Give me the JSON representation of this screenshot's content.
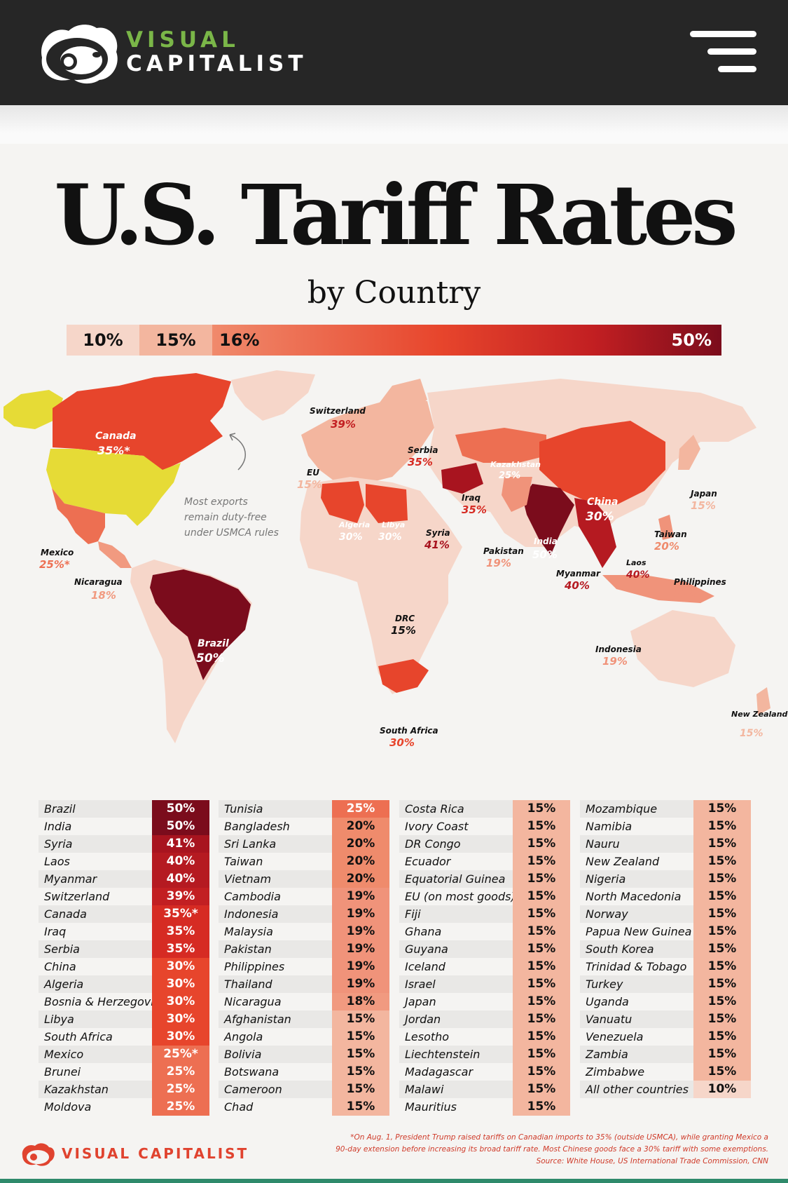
{
  "header": {
    "brand_line1": "VISUAL",
    "brand_line2": "CAPITALIST",
    "menu_icon": "hamburger-menu-icon",
    "colors": {
      "bar": "#262626",
      "brand_green": "#7ab648"
    }
  },
  "infographic": {
    "title_part1": "U.S.",
    "title_highlight": "Tariff",
    "title_part2": "Rates",
    "subtitle": "by Country",
    "legend": {
      "s10": "10%",
      "s15": "15%",
      "s16": "16%",
      "s50": "50%"
    },
    "colors": {
      "r10": "#f6d6c9",
      "r15": "#f3b69f",
      "r18": "#f08a6c",
      "r20": "#ef8b6c",
      "r25": "#ed6f52",
      "r30": "#e7452c",
      "r35": "#d62b23",
      "r39": "#c21f22",
      "r41": "#a8141f",
      "r50": "#7b0c1c",
      "us": "#e6db36"
    },
    "map": {
      "usmca_note": [
        "Most exports",
        "remain duty-free",
        "under USMCA rules"
      ],
      "labels": {
        "canada": {
          "name": "Canada",
          "rate": "35%*"
        },
        "mexico": {
          "name": "Mexico",
          "rate": "25%*"
        },
        "nicaragua": {
          "name": "Nicaragua",
          "rate": "18%"
        },
        "brazil": {
          "name": "Brazil",
          "rate": "50%"
        },
        "switzerland": {
          "name": "Switzerland",
          "rate": "39%"
        },
        "eu": {
          "name": "EU",
          "rate": "15%"
        },
        "serbia": {
          "name": "Serbia",
          "rate": "35%"
        },
        "kazakhstan": {
          "name": "Kazakhstan",
          "rate": "25%"
        },
        "iraq": {
          "name": "Iraq",
          "rate": "35%"
        },
        "algeria": {
          "name": "Algeria",
          "rate": "30%"
        },
        "libya": {
          "name": "Libya",
          "rate": "30%"
        },
        "syria": {
          "name": "Syria",
          "rate": "41%"
        },
        "china": {
          "name": "China",
          "rate": "30%"
        },
        "japan": {
          "name": "Japan",
          "rate": "15%"
        },
        "taiwan": {
          "name": "Taiwan",
          "rate": "20%"
        },
        "india": {
          "name": "India",
          "rate": "50%"
        },
        "pakistan": {
          "name": "Pakistan",
          "rate": "19%"
        },
        "myanmar": {
          "name": "Myanmar",
          "rate": "40%"
        },
        "laos": {
          "name": "Laos",
          "rate": "40%"
        },
        "philippines": {
          "name": "Philippines",
          "rate": "19%"
        },
        "drc": {
          "name": "DRC",
          "rate": "15%"
        },
        "indonesia": {
          "name": "Indonesia",
          "rate": "19%"
        },
        "south_africa": {
          "name": "South Africa",
          "rate": "30%"
        },
        "new_zealand": {
          "name": "New Zealand",
          "rate": "15%"
        }
      }
    },
    "table": [
      [
        {
          "country": "Brazil",
          "rate": "50%",
          "color": "#7b0c1c"
        },
        {
          "country": "India",
          "rate": "50%",
          "color": "#7b0c1c"
        },
        {
          "country": "Syria",
          "rate": "41%",
          "color": "#a8141f"
        },
        {
          "country": "Laos",
          "rate": "40%",
          "color": "#b51a21"
        },
        {
          "country": "Myanmar",
          "rate": "40%",
          "color": "#b51a21"
        },
        {
          "country": "Switzerland",
          "rate": "39%",
          "color": "#c21f22"
        },
        {
          "country": "Canada",
          "rate": "35%*",
          "color": "#d62b23"
        },
        {
          "country": "Iraq",
          "rate": "35%",
          "color": "#d62b23"
        },
        {
          "country": "Serbia",
          "rate": "35%",
          "color": "#d62b23"
        },
        {
          "country": "China",
          "rate": "30%",
          "color": "#e7452c"
        },
        {
          "country": "Algeria",
          "rate": "30%",
          "color": "#e7452c"
        },
        {
          "country": "Bosnia & Herzegovina",
          "rate": "30%",
          "color": "#e7452c"
        },
        {
          "country": "Libya",
          "rate": "30%",
          "color": "#e7452c"
        },
        {
          "country": "South Africa",
          "rate": "30%",
          "color": "#e7452c"
        },
        {
          "country": "Mexico",
          "rate": "25%*",
          "color": "#ed6f52"
        },
        {
          "country": "Brunei",
          "rate": "25%",
          "color": "#ed6f52"
        },
        {
          "country": "Kazakhstan",
          "rate": "25%",
          "color": "#ed6f52"
        },
        {
          "country": "Moldova",
          "rate": "25%",
          "color": "#ed6f52"
        }
      ],
      [
        {
          "country": "Tunisia",
          "rate": "25%",
          "color": "#ed6f52"
        },
        {
          "country": "Bangladesh",
          "rate": "20%",
          "color": "#ef8b6c"
        },
        {
          "country": "Sri Lanka",
          "rate": "20%",
          "color": "#ef8b6c"
        },
        {
          "country": "Taiwan",
          "rate": "20%",
          "color": "#ef8b6c"
        },
        {
          "country": "Vietnam",
          "rate": "20%",
          "color": "#ef8b6c"
        },
        {
          "country": "Cambodia",
          "rate": "19%",
          "color": "#f0937a"
        },
        {
          "country": "Indonesia",
          "rate": "19%",
          "color": "#f0937a"
        },
        {
          "country": "Malaysia",
          "rate": "19%",
          "color": "#f0937a"
        },
        {
          "country": "Pakistan",
          "rate": "19%",
          "color": "#f0937a"
        },
        {
          "country": "Philippines",
          "rate": "19%",
          "color": "#f0937a"
        },
        {
          "country": "Thailand",
          "rate": "19%",
          "color": "#f0937a"
        },
        {
          "country": "Nicaragua",
          "rate": "18%",
          "color": "#f19a80"
        },
        {
          "country": "Afghanistan",
          "rate": "15%",
          "color": "#f3b69f"
        },
        {
          "country": "Angola",
          "rate": "15%",
          "color": "#f3b69f"
        },
        {
          "country": "Bolivia",
          "rate": "15%",
          "color": "#f3b69f"
        },
        {
          "country": "Botswana",
          "rate": "15%",
          "color": "#f3b69f"
        },
        {
          "country": "Cameroon",
          "rate": "15%",
          "color": "#f3b69f"
        },
        {
          "country": "Chad",
          "rate": "15%",
          "color": "#f3b69f"
        }
      ],
      [
        {
          "country": "Costa Rica",
          "rate": "15%",
          "color": "#f3b69f"
        },
        {
          "country": "Ivory Coast",
          "rate": "15%",
          "color": "#f3b69f"
        },
        {
          "country": "DR Congo",
          "rate": "15%",
          "color": "#f3b69f"
        },
        {
          "country": "Ecuador",
          "rate": "15%",
          "color": "#f3b69f"
        },
        {
          "country": "Equatorial Guinea",
          "rate": "15%",
          "color": "#f3b69f"
        },
        {
          "country": "EU (on most goods)",
          "rate": "15%",
          "color": "#f3b69f"
        },
        {
          "country": "Fiji",
          "rate": "15%",
          "color": "#f3b69f"
        },
        {
          "country": "Ghana",
          "rate": "15%",
          "color": "#f3b69f"
        },
        {
          "country": "Guyana",
          "rate": "15%",
          "color": "#f3b69f"
        },
        {
          "country": "Iceland",
          "rate": "15%",
          "color": "#f3b69f"
        },
        {
          "country": "Israel",
          "rate": "15%",
          "color": "#f3b69f"
        },
        {
          "country": "Japan",
          "rate": "15%",
          "color": "#f3b69f"
        },
        {
          "country": "Jordan",
          "rate": "15%",
          "color": "#f3b69f"
        },
        {
          "country": "Lesotho",
          "rate": "15%",
          "color": "#f3b69f"
        },
        {
          "country": "Liechtenstein",
          "rate": "15%",
          "color": "#f3b69f"
        },
        {
          "country": "Madagascar",
          "rate": "15%",
          "color": "#f3b69f"
        },
        {
          "country": "Malawi",
          "rate": "15%",
          "color": "#f3b69f"
        },
        {
          "country": "Mauritius",
          "rate": "15%",
          "color": "#f3b69f"
        }
      ],
      [
        {
          "country": "Mozambique",
          "rate": "15%",
          "color": "#f3b69f"
        },
        {
          "country": "Namibia",
          "rate": "15%",
          "color": "#f3b69f"
        },
        {
          "country": "Nauru",
          "rate": "15%",
          "color": "#f3b69f"
        },
        {
          "country": "New Zealand",
          "rate": "15%",
          "color": "#f3b69f"
        },
        {
          "country": "Nigeria",
          "rate": "15%",
          "color": "#f3b69f"
        },
        {
          "country": "North Macedonia",
          "rate": "15%",
          "color": "#f3b69f"
        },
        {
          "country": "Norway",
          "rate": "15%",
          "color": "#f3b69f"
        },
        {
          "country": "Papua New Guinea",
          "rate": "15%",
          "color": "#f3b69f"
        },
        {
          "country": "South Korea",
          "rate": "15%",
          "color": "#f3b69f"
        },
        {
          "country": "Trinidad & Tobago",
          "rate": "15%",
          "color": "#f3b69f"
        },
        {
          "country": "Turkey",
          "rate": "15%",
          "color": "#f3b69f"
        },
        {
          "country": "Uganda",
          "rate": "15%",
          "color": "#f3b69f"
        },
        {
          "country": "Vanuatu",
          "rate": "15%",
          "color": "#f3b69f"
        },
        {
          "country": "Venezuela",
          "rate": "15%",
          "color": "#f3b69f"
        },
        {
          "country": "Zambia",
          "rate": "15%",
          "color": "#f3b69f"
        },
        {
          "country": "Zimbabwe",
          "rate": "15%",
          "color": "#f3b69f"
        },
        {
          "country": "All other countries",
          "rate": "10%",
          "color": "#f6d6c9"
        }
      ]
    ],
    "footer": {
      "brand": "VISUAL CAPITALIST",
      "note_line1": "*On Aug. 1, President Trump raised tariffs on Canadian imports to 35% (outside USMCA), while granting Mexico a",
      "note_line2": "90-day extension before increasing its broad tariff rate. Most Chinese goods face a 30% tariff with some exemptions.",
      "source": "Source: White House, US International Trade Commission, CNN"
    }
  }
}
